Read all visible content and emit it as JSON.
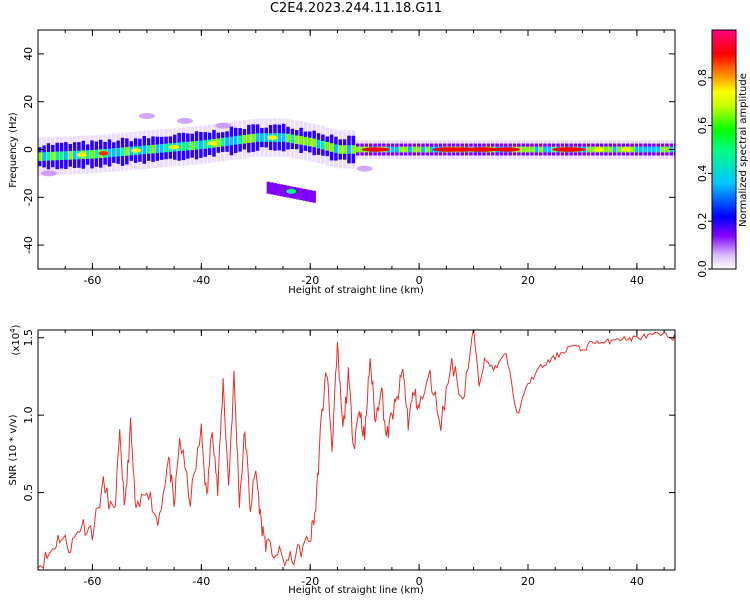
{
  "title": "C2E4.2023.244.11.18.G11",
  "colors": {
    "snr_line": "#e8302a",
    "axis": "#000000"
  },
  "chart_data": [
    {
      "type": "heatmap",
      "xlabel": "Height of straight line (km)",
      "ylabel": "Frequency (Hz)",
      "xlim": [
        -70,
        47
      ],
      "ylim": [
        -50,
        50
      ],
      "x_ticks": [
        -60,
        -40,
        -20,
        0,
        20,
        40
      ],
      "y_ticks": [
        -40,
        -20,
        0,
        20,
        40
      ],
      "colorbar": {
        "label": "Normalized spectral amplitude",
        "range": [
          0,
          1
        ],
        "ticks": [
          "0.0",
          "0.2",
          "0.4",
          "0.6",
          "0.8"
        ],
        "colormap": "rainbow (white-violet-blue-cyan-green-yellow-red-magenta)"
      },
      "features": [
        {
          "name": "main band",
          "x_range": [
            -70,
            47
          ],
          "frequency_hz": 0,
          "peak_level": "high"
        },
        {
          "name": "secondary blob",
          "x_range": [
            -28,
            -19
          ],
          "frequency_hz": -18
        },
        {
          "name": "upper weak blob",
          "x_range": [
            -52,
            -42
          ],
          "frequency_hz": 14
        }
      ],
      "band_center": {
        "x": [
          -70,
          -60,
          -50,
          -40,
          -30,
          -25,
          -20,
          -15,
          -10,
          0,
          10,
          20,
          30,
          40,
          47
        ],
        "y": [
          -3,
          -2,
          0,
          2,
          5,
          5,
          3,
          0,
          0,
          0,
          0,
          0,
          0,
          0,
          0
        ]
      }
    },
    {
      "type": "line",
      "xlabel": "Height of straight line (km)",
      "ylabel": "SNR (10 * v/v)",
      "y_multiplier": "(x10",
      "y_multiplier_exp": "4",
      "y_multiplier_close": ")",
      "xlim": [
        -70,
        47
      ],
      "ylim": [
        0,
        1.55
      ],
      "x_ticks": [
        -60,
        -40,
        -20,
        0,
        20,
        40
      ],
      "y_ticks": [
        "0.5",
        "1.0",
        "1.5"
      ],
      "series": [
        {
          "x": [
            -70,
            -68,
            -66,
            -64,
            -62,
            -60,
            -58,
            -56,
            -55,
            -54,
            -53,
            -52,
            -50,
            -48,
            -46,
            -45,
            -44,
            -42,
            -40,
            -39,
            -38,
            -37,
            -36,
            -35,
            -34,
            -33,
            -32,
            -31,
            -30,
            -29,
            -28,
            -26,
            -24,
            -22,
            -20,
            -19,
            -18,
            -17,
            -16,
            -15,
            -14,
            -13,
            -12,
            -11,
            -10,
            -9,
            -8,
            -7,
            -6,
            -5,
            -4,
            -3,
            -2,
            -1,
            0,
            2,
            4,
            6,
            8,
            10,
            11,
            12,
            14,
            16,
            18,
            20,
            22,
            24,
            26,
            28,
            30,
            32,
            34,
            36,
            38,
            40,
            42,
            44,
            46,
            47
          ],
          "y": [
            0.02,
            0.1,
            0.22,
            0.15,
            0.3,
            0.25,
            0.55,
            0.35,
            0.85,
            0.4,
            0.93,
            0.35,
            0.55,
            0.3,
            0.72,
            0.4,
            0.85,
            0.45,
            0.9,
            0.45,
            0.95,
            0.5,
            1.22,
            0.55,
            1.25,
            0.45,
            0.9,
            0.4,
            0.65,
            0.3,
            0.15,
            0.1,
            0.05,
            0.12,
            0.2,
            0.4,
            0.95,
            1.3,
            0.8,
            1.42,
            0.9,
            1.25,
            0.8,
            1.05,
            0.85,
            1.37,
            0.95,
            1.2,
            0.85,
            1.0,
            1.1,
            1.3,
            0.95,
            1.15,
            1.05,
            1.25,
            0.95,
            1.35,
            1.1,
            1.55,
            1.2,
            1.35,
            1.3,
            1.4,
            1.0,
            1.2,
            1.3,
            1.35,
            1.4,
            1.45,
            1.42,
            1.48,
            1.46,
            1.5,
            1.49,
            1.5,
            1.51,
            1.52,
            1.51,
            1.5
          ]
        }
      ]
    }
  ]
}
